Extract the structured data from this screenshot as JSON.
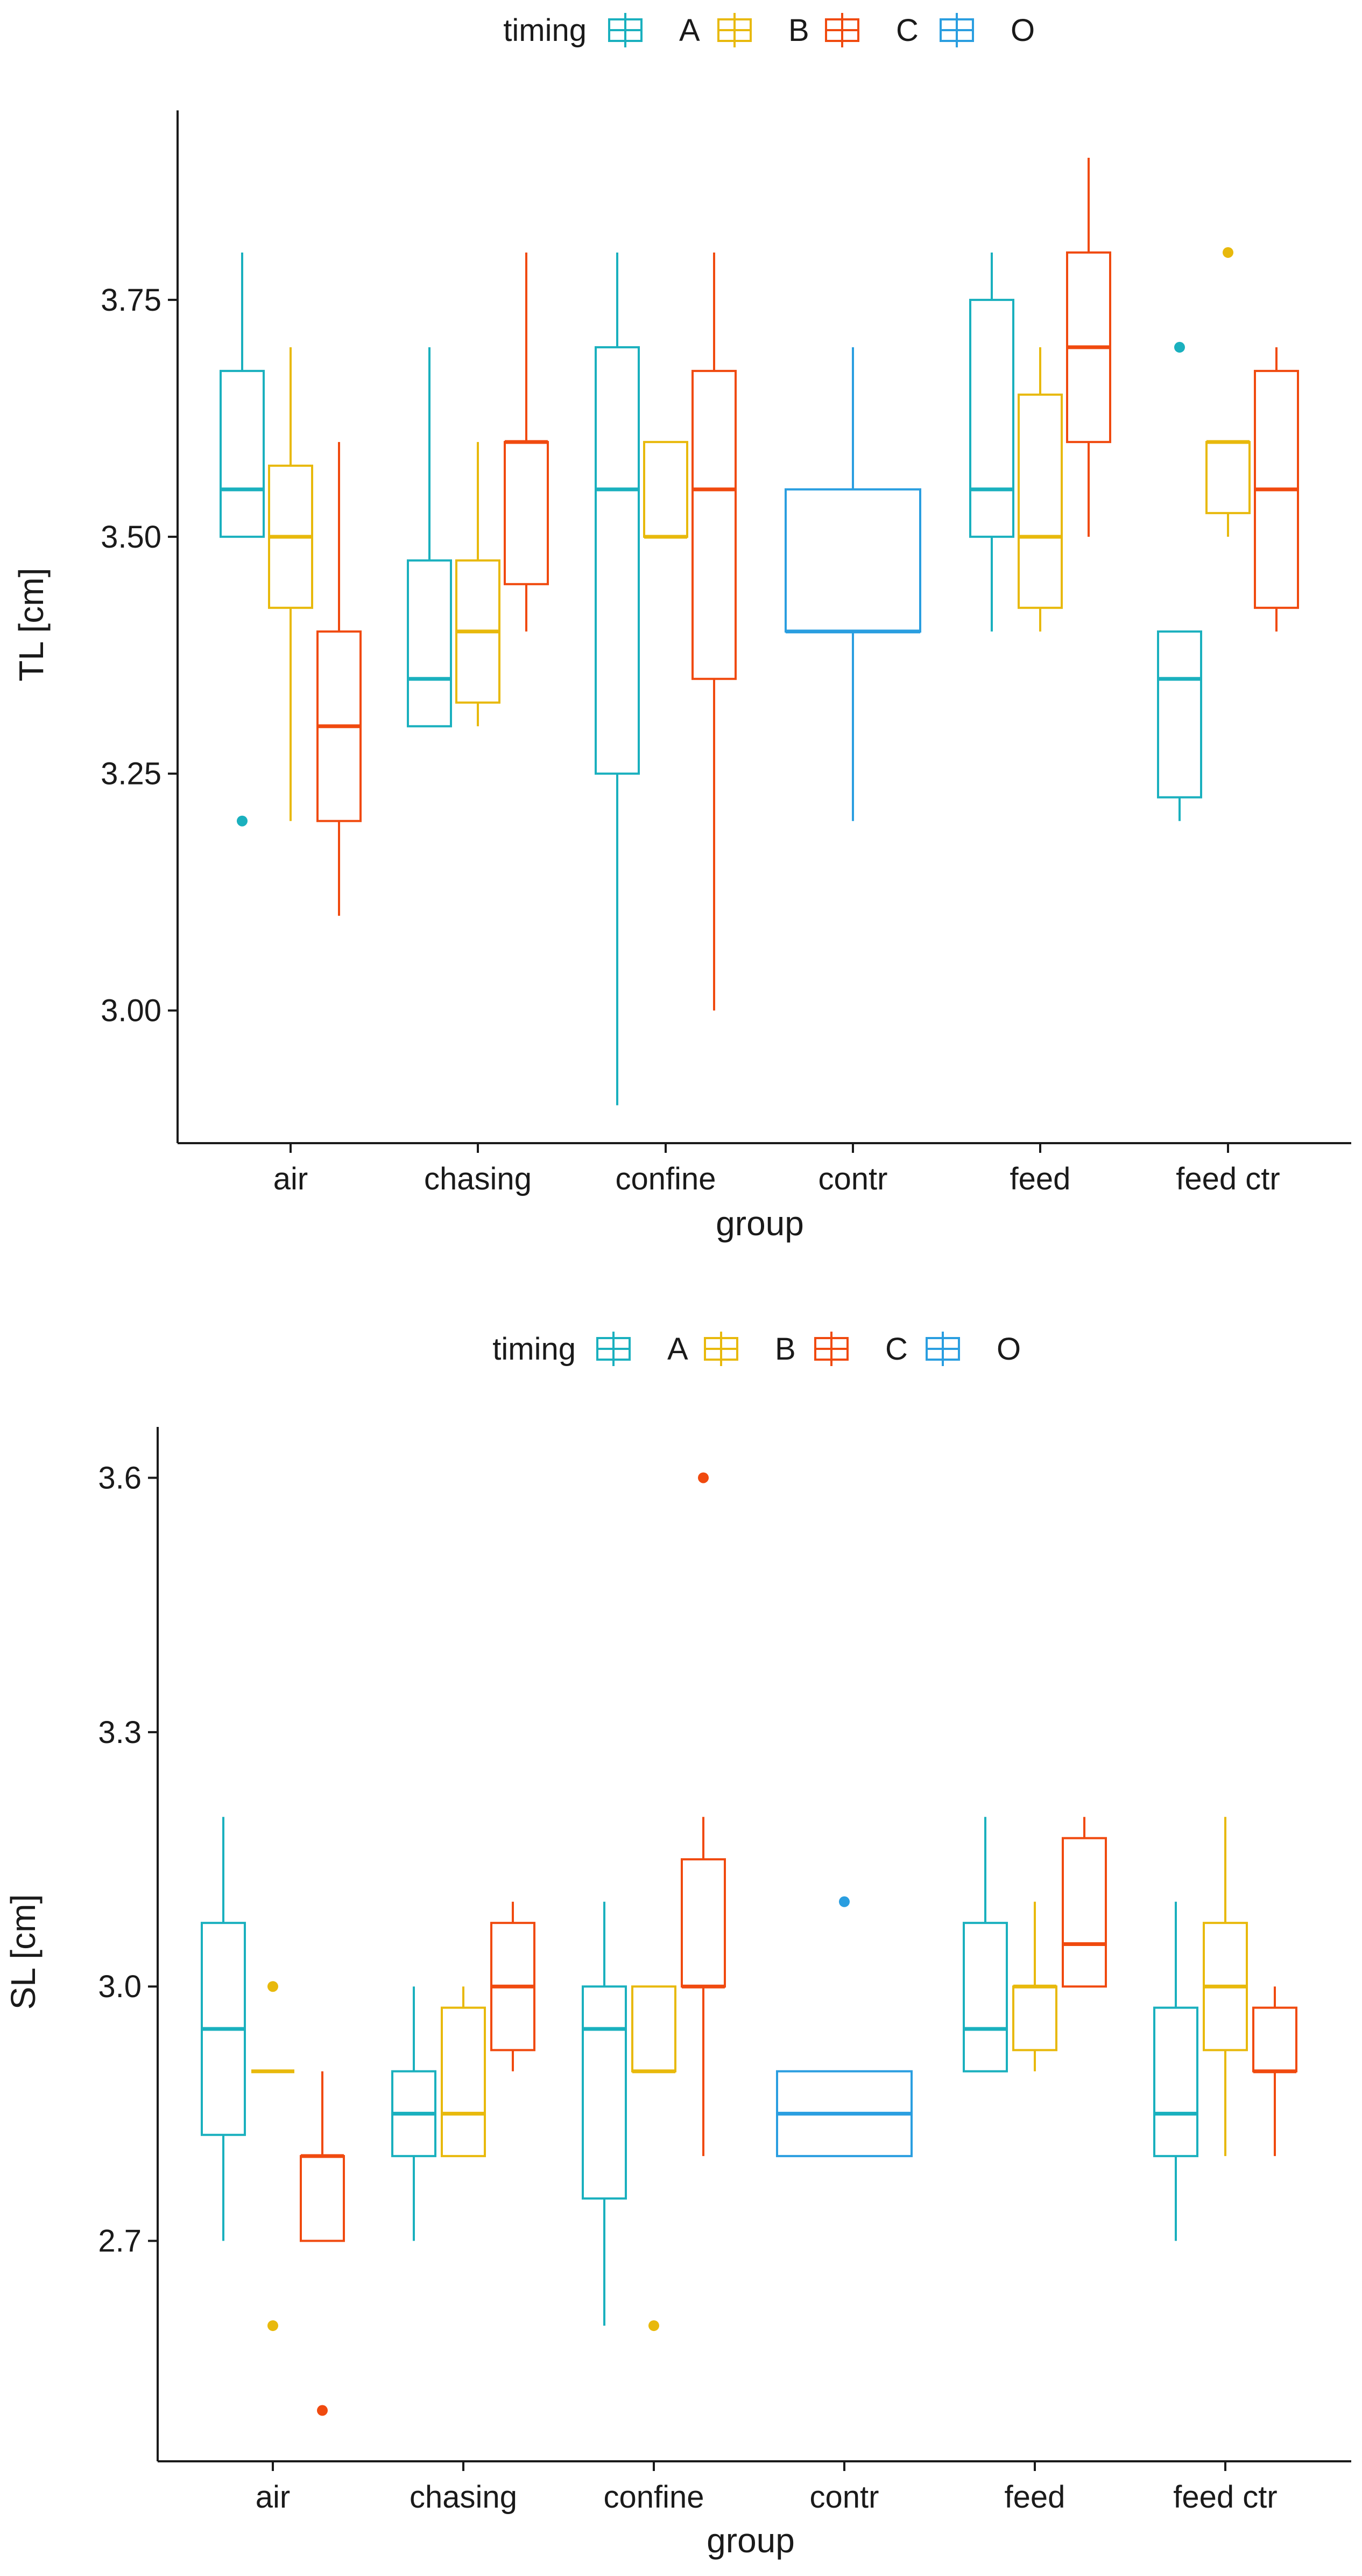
{
  "chart_data": [
    {
      "type": "boxplot",
      "title": "",
      "xlabel": "group",
      "ylabel": "TL [cm]",
      "ylim": [
        2.86,
        3.95
      ],
      "yticks": [
        3.0,
        3.25,
        3.5,
        3.75
      ],
      "ytick_labels": [
        "3.00",
        "3.25",
        "3.50",
        "3.75"
      ],
      "categories": [
        "air",
        "chasing",
        "confine",
        "contr",
        "feed",
        "feed ctr"
      ],
      "legend": {
        "title": "timing",
        "position": "top",
        "entries": [
          "A",
          "B",
          "C",
          "O"
        ]
      },
      "colors": {
        "A": "#1ab0be",
        "B": "#e8b90c",
        "C": "#f04a0f",
        "O": "#2a9ee0"
      },
      "boxes": [
        {
          "group": "air",
          "timing": "A",
          "whisker_low": 3.5,
          "q1": 3.5,
          "median": 3.55,
          "q3": 3.675,
          "whisker_high": 3.8,
          "outliers": [
            3.2
          ]
        },
        {
          "group": "air",
          "timing": "B",
          "whisker_low": 3.2,
          "q1": 3.425,
          "median": 3.5,
          "q3": 3.575,
          "whisker_high": 3.7,
          "outliers": []
        },
        {
          "group": "air",
          "timing": "C",
          "whisker_low": 3.1,
          "q1": 3.2,
          "median": 3.3,
          "q3": 3.4,
          "whisker_high": 3.6,
          "outliers": []
        },
        {
          "group": "chasing",
          "timing": "A",
          "whisker_low": 3.3,
          "q1": 3.3,
          "median": 3.35,
          "q3": 3.475,
          "whisker_high": 3.7,
          "outliers": []
        },
        {
          "group": "chasing",
          "timing": "B",
          "whisker_low": 3.3,
          "q1": 3.325,
          "median": 3.4,
          "q3": 3.475,
          "whisker_high": 3.6,
          "outliers": []
        },
        {
          "group": "chasing",
          "timing": "C",
          "whisker_low": 3.4,
          "q1": 3.45,
          "median": 3.6,
          "q3": 3.6,
          "whisker_high": 3.8,
          "outliers": []
        },
        {
          "group": "confine",
          "timing": "A",
          "whisker_low": 2.9,
          "q1": 3.25,
          "median": 3.55,
          "q3": 3.7,
          "whisker_high": 3.8,
          "outliers": []
        },
        {
          "group": "confine",
          "timing": "B",
          "whisker_low": 3.5,
          "q1": 3.5,
          "median": 3.5,
          "q3": 3.6,
          "whisker_high": 3.6,
          "outliers": []
        },
        {
          "group": "confine",
          "timing": "C",
          "whisker_low": 3.0,
          "q1": 3.35,
          "median": 3.55,
          "q3": 3.675,
          "whisker_high": 3.8,
          "outliers": []
        },
        {
          "group": "contr",
          "timing": "O",
          "whisker_low": 3.2,
          "q1": 3.4,
          "median": 3.4,
          "q3": 3.55,
          "whisker_high": 3.7,
          "outliers": []
        },
        {
          "group": "feed",
          "timing": "A",
          "whisker_low": 3.4,
          "q1": 3.5,
          "median": 3.55,
          "q3": 3.75,
          "whisker_high": 3.8,
          "outliers": []
        },
        {
          "group": "feed",
          "timing": "B",
          "whisker_low": 3.4,
          "q1": 3.425,
          "median": 3.5,
          "q3": 3.65,
          "whisker_high": 3.7,
          "outliers": []
        },
        {
          "group": "feed",
          "timing": "C",
          "whisker_low": 3.5,
          "q1": 3.6,
          "median": 3.7,
          "q3": 3.8,
          "whisker_high": 3.9,
          "outliers": []
        },
        {
          "group": "feed ctr",
          "timing": "A",
          "whisker_low": 3.2,
          "q1": 3.225,
          "median": 3.35,
          "q3": 3.4,
          "whisker_high": 3.4,
          "outliers": [
            3.7
          ]
        },
        {
          "group": "feed ctr",
          "timing": "B",
          "whisker_low": 3.5,
          "q1": 3.525,
          "median": 3.6,
          "q3": 3.6,
          "whisker_high": 3.6,
          "outliers": [
            3.8
          ]
        },
        {
          "group": "feed ctr",
          "timing": "C",
          "whisker_low": 3.4,
          "q1": 3.425,
          "median": 3.55,
          "q3": 3.675,
          "whisker_high": 3.7,
          "outliers": []
        }
      ]
    },
    {
      "type": "boxplot",
      "title": "",
      "xlabel": "group",
      "ylabel": "SL [cm]",
      "ylim": [
        2.44,
        3.66
      ],
      "yticks": [
        2.7,
        3.0,
        3.3,
        3.6
      ],
      "ytick_labels": [
        "2.7",
        "3.0",
        "3.3",
        "3.6"
      ],
      "categories": [
        "air",
        "chasing",
        "confine",
        "contr",
        "feed",
        "feed ctr"
      ],
      "legend": {
        "title": "timing",
        "position": "top",
        "entries": [
          "A",
          "B",
          "C",
          "O"
        ]
      },
      "colors": {
        "A": "#1ab0be",
        "B": "#e8b90c",
        "C": "#f04a0f",
        "O": "#2a9ee0"
      },
      "boxes": [
        {
          "group": "air",
          "timing": "A",
          "whisker_low": 2.7,
          "q1": 2.825,
          "median": 2.95,
          "q3": 3.075,
          "whisker_high": 3.2,
          "outliers": []
        },
        {
          "group": "air",
          "timing": "B",
          "whisker_low": 2.9,
          "q1": 2.9,
          "median": 2.9,
          "q3": 2.9,
          "whisker_high": 2.9,
          "outliers": [
            3.0,
            2.6
          ]
        },
        {
          "group": "air",
          "timing": "C",
          "whisker_low": 2.7,
          "q1": 2.7,
          "median": 2.8,
          "q3": 2.8,
          "whisker_high": 2.9,
          "outliers": [
            2.5
          ]
        },
        {
          "group": "chasing",
          "timing": "A",
          "whisker_low": 2.7,
          "q1": 2.8,
          "median": 2.85,
          "q3": 2.9,
          "whisker_high": 3.0,
          "outliers": []
        },
        {
          "group": "chasing",
          "timing": "B",
          "whisker_low": 2.8,
          "q1": 2.8,
          "median": 2.85,
          "q3": 2.975,
          "whisker_high": 3.0,
          "outliers": []
        },
        {
          "group": "chasing",
          "timing": "C",
          "whisker_low": 2.9,
          "q1": 2.925,
          "median": 3.0,
          "q3": 3.075,
          "whisker_high": 3.1,
          "outliers": []
        },
        {
          "group": "confine",
          "timing": "A",
          "whisker_low": 2.6,
          "q1": 2.75,
          "median": 2.95,
          "q3": 3.0,
          "whisker_high": 3.1,
          "outliers": []
        },
        {
          "group": "confine",
          "timing": "B",
          "whisker_low": 2.9,
          "q1": 2.9,
          "median": 2.9,
          "q3": 3.0,
          "whisker_high": 3.0,
          "outliers": [
            2.6
          ]
        },
        {
          "group": "confine",
          "timing": "C",
          "whisker_low": 2.8,
          "q1": 3.0,
          "median": 3.0,
          "q3": 3.15,
          "whisker_high": 3.2,
          "outliers": [
            3.6
          ]
        },
        {
          "group": "contr",
          "timing": "O",
          "whisker_low": 2.8,
          "q1": 2.8,
          "median": 2.85,
          "q3": 2.9,
          "whisker_high": 2.9,
          "outliers": [
            3.1
          ]
        },
        {
          "group": "feed",
          "timing": "A",
          "whisker_low": 2.9,
          "q1": 2.9,
          "median": 2.95,
          "q3": 3.075,
          "whisker_high": 3.2,
          "outliers": []
        },
        {
          "group": "feed",
          "timing": "B",
          "whisker_low": 2.9,
          "q1": 2.925,
          "median": 3.0,
          "q3": 3.0,
          "whisker_high": 3.1,
          "outliers": []
        },
        {
          "group": "feed",
          "timing": "C",
          "whisker_low": 3.0,
          "q1": 3.0,
          "median": 3.05,
          "q3": 3.175,
          "whisker_high": 3.2,
          "outliers": []
        },
        {
          "group": "feed ctr",
          "timing": "A",
          "whisker_low": 2.7,
          "q1": 2.8,
          "median": 2.85,
          "q3": 2.975,
          "whisker_high": 3.1,
          "outliers": []
        },
        {
          "group": "feed ctr",
          "timing": "B",
          "whisker_low": 2.8,
          "q1": 2.925,
          "median": 3.0,
          "q3": 3.075,
          "whisker_high": 3.2,
          "outliers": []
        },
        {
          "group": "feed ctr",
          "timing": "C",
          "whisker_low": 2.8,
          "q1": 2.9,
          "median": 2.9,
          "q3": 2.975,
          "whisker_high": 3.0,
          "outliers": []
        }
      ]
    }
  ]
}
